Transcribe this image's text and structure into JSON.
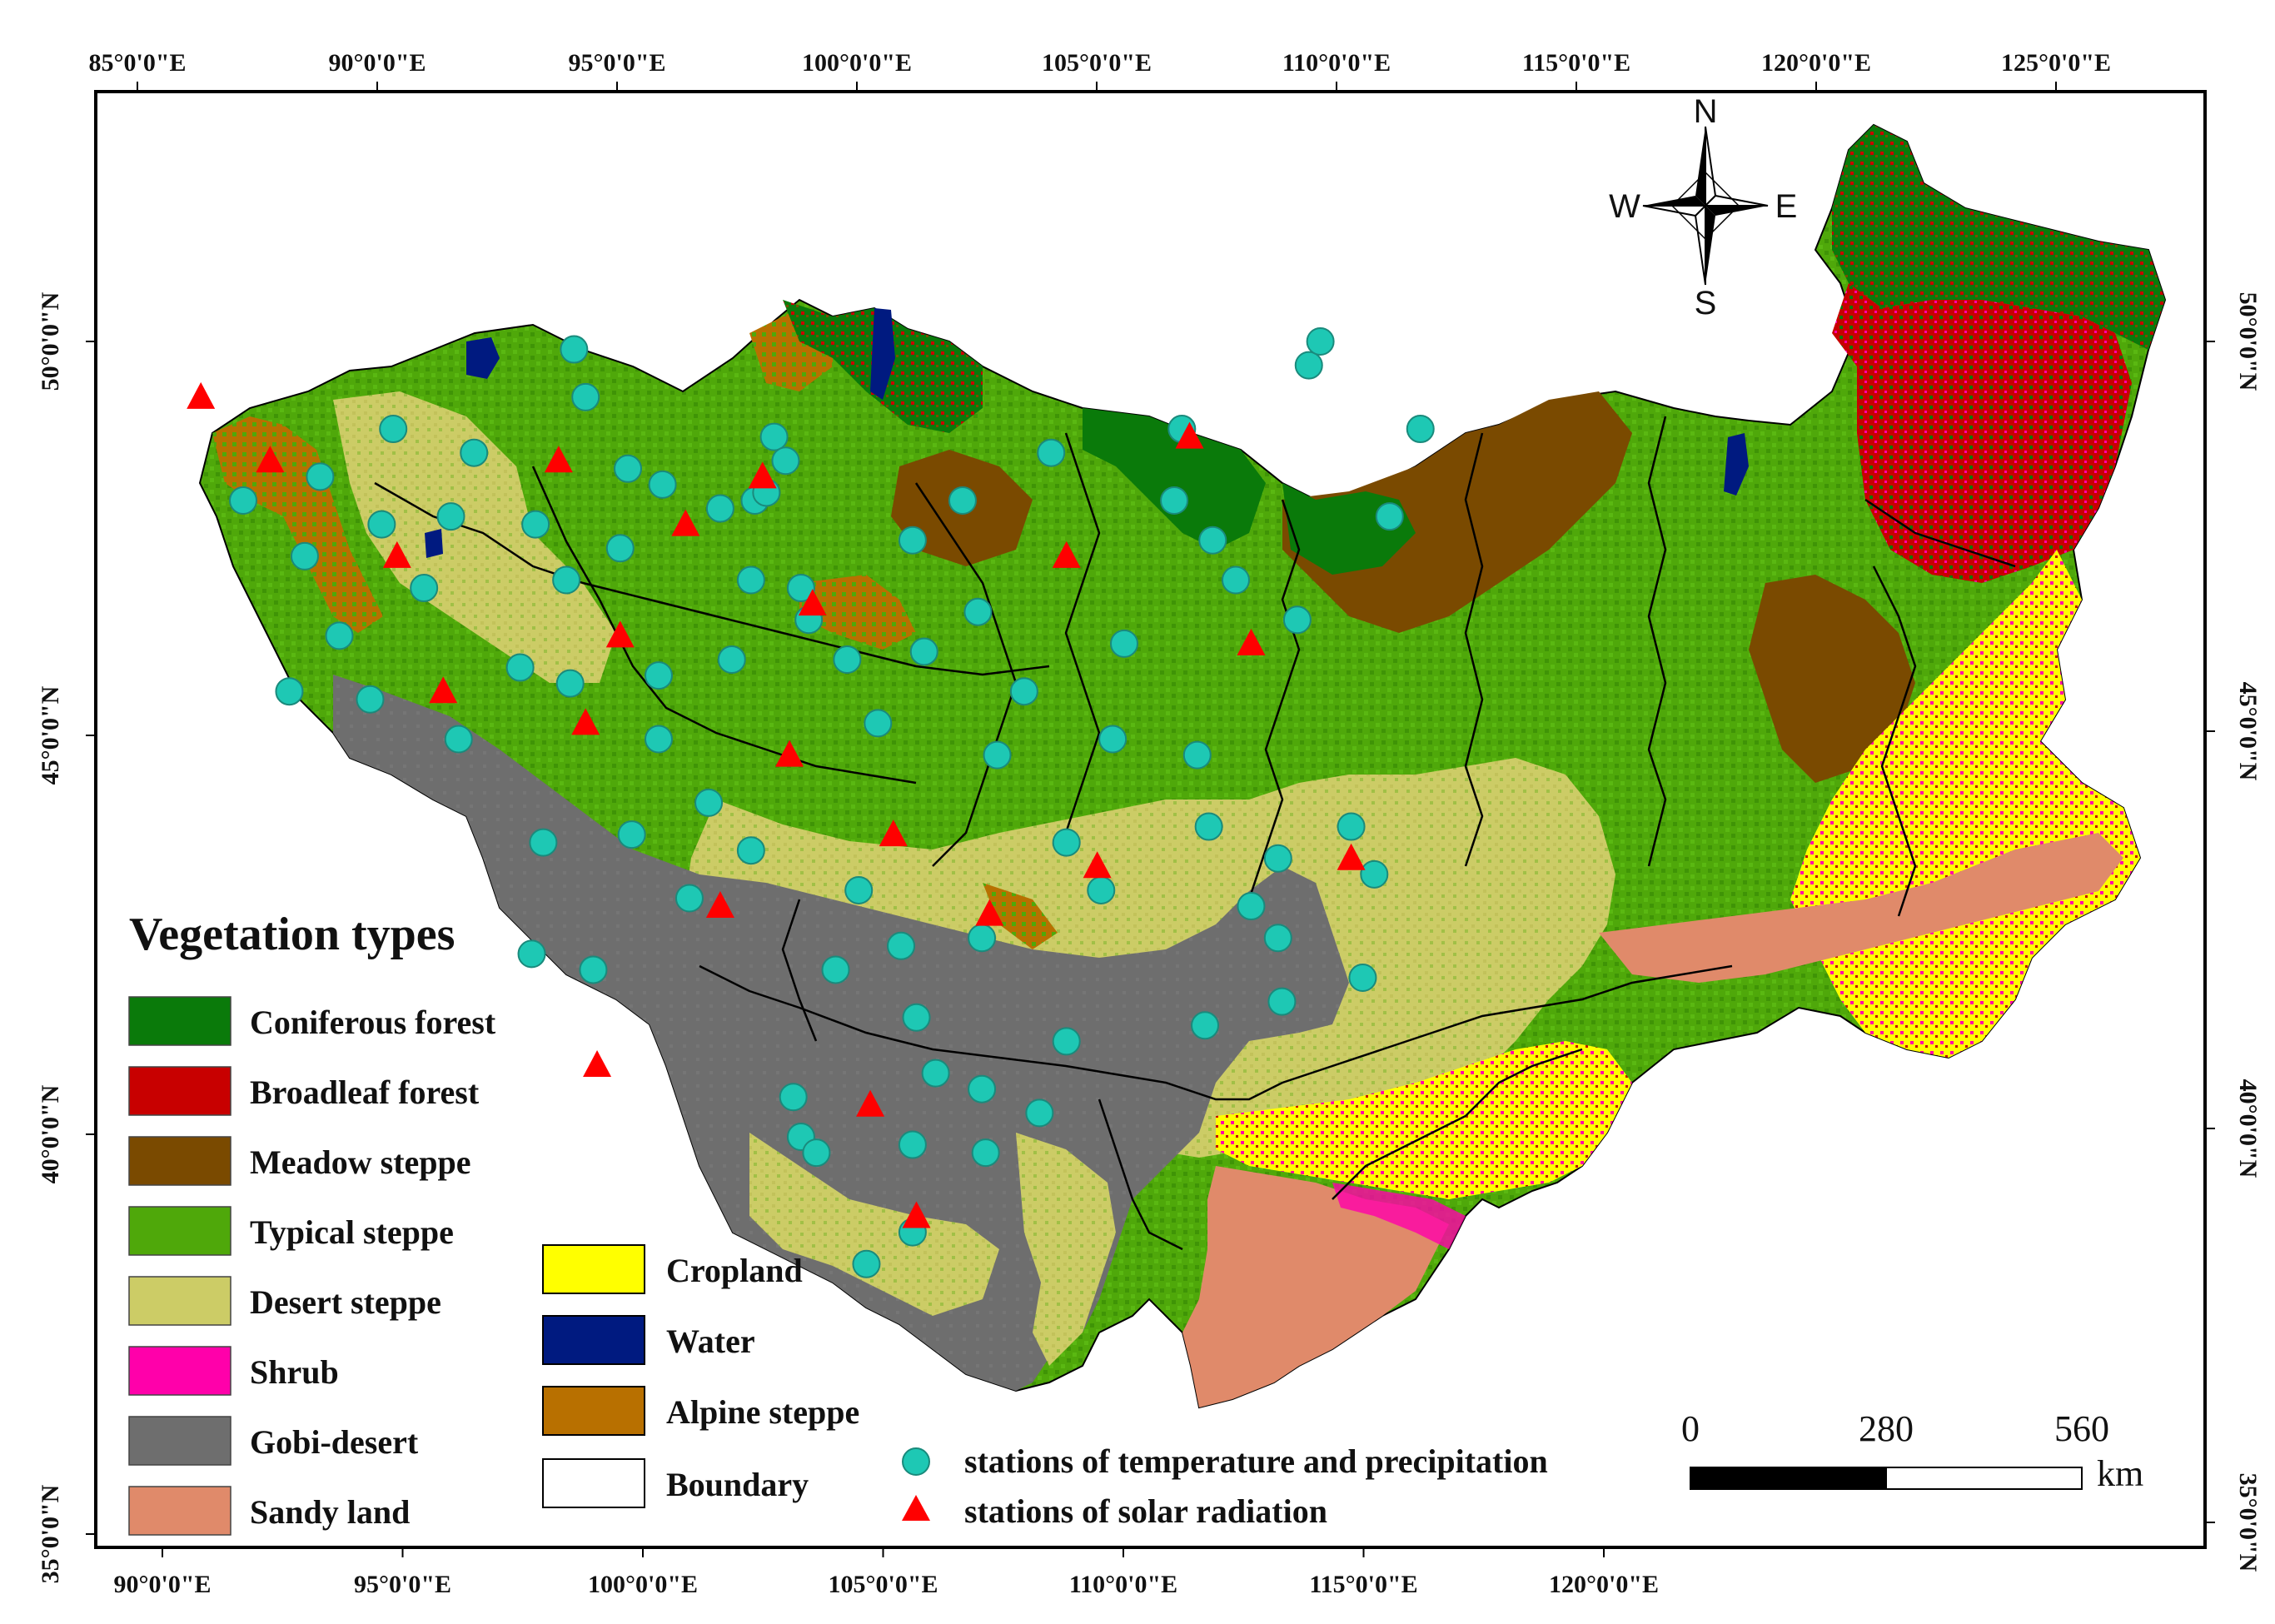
{
  "legend": {
    "title": "Vegetation types",
    "items": [
      {
        "key": "coniferous",
        "label": "Coniferous forest",
        "color": "#0a7a0a"
      },
      {
        "key": "broadleaf",
        "label": "Broadleaf forest",
        "color": "#c80000"
      },
      {
        "key": "meadow",
        "label": "Meadow steppe",
        "color": "#7a4a00"
      },
      {
        "key": "typical",
        "label": "Typical steppe",
        "color": "#4fa80a"
      },
      {
        "key": "desert_steppe",
        "label": "Desert steppe",
        "color": "#cccc66"
      },
      {
        "key": "shrub",
        "label": "Shrub",
        "color": "#ff00aa"
      },
      {
        "key": "gobi",
        "label": "Gobi-desert",
        "color": "#6e6e6e"
      },
      {
        "key": "sandy",
        "label": "Sandy land",
        "color": "#e08a6a"
      },
      {
        "key": "cropland",
        "label": "Cropland",
        "color": "#ffff00"
      },
      {
        "key": "water",
        "label": "Water",
        "color": "#001a80"
      },
      {
        "key": "alpine",
        "label": "Alpine steppe",
        "color": "#b87000"
      },
      {
        "key": "boundary",
        "label": "Boundary",
        "color": "#ffffff"
      }
    ],
    "stations_temp": {
      "label": "stations of temperature and precipitation",
      "color": "#1ec8b4"
    },
    "stations_solar": {
      "label": "stations of solar radiation",
      "color": "#ff0000"
    }
  },
  "axes": {
    "top_lon": [
      "85°0'0\"E",
      "90°0'0\"E",
      "95°0'0\"E",
      "100°0'0\"E",
      "105°0'0\"E",
      "110°0'0\"E",
      "115°0'0\"E",
      "120°0'0\"E",
      "125°0'0\"E"
    ],
    "bottom_lon": [
      "90°0'0\"E",
      "95°0'0\"E",
      "100°0'0\"E",
      "105°0'0\"E",
      "110°0'0\"E",
      "115°0'0\"E",
      "120°0'0\"E"
    ],
    "left_lat": [
      "50°0'0\"N",
      "45°0'0\"N",
      "40°0'0\"N",
      "35°0'0\"N"
    ],
    "right_lat": [
      "50°0'0\"N",
      "45°0'0\"N",
      "40°0'0\"N",
      "35°0'0\"N"
    ]
  },
  "compass": {
    "n": "N",
    "s": "S",
    "e": "E",
    "w": "W"
  },
  "scale_bar": {
    "labels": [
      "0",
      "280",
      "560"
    ],
    "unit": "km"
  },
  "stations": {
    "temp_precip": [
      [
        92.1,
        48.0
      ],
      [
        93.3,
        45.6
      ],
      [
        93.7,
        47.3
      ],
      [
        94.1,
        48.3
      ],
      [
        94.6,
        46.3
      ],
      [
        95.4,
        45.5
      ],
      [
        95.7,
        47.7
      ],
      [
        96.0,
        48.9
      ],
      [
        96.8,
        46.9
      ],
      [
        97.5,
        47.8
      ],
      [
        97.7,
        45.0
      ],
      [
        98.1,
        48.6
      ],
      [
        99.3,
        45.9
      ],
      [
        99.7,
        47.7
      ],
      [
        99.9,
        43.7
      ],
      [
        99.6,
        42.3
      ],
      [
        100.5,
        47.0
      ],
      [
        100.6,
        45.7
      ],
      [
        100.7,
        49.9
      ],
      [
        101.0,
        49.3
      ],
      [
        101.2,
        42.1
      ],
      [
        101.9,
        47.4
      ],
      [
        102.2,
        43.8
      ],
      [
        102.1,
        48.4
      ],
      [
        102.9,
        45.8
      ],
      [
        102.9,
        45.0
      ],
      [
        103.0,
        48.2
      ],
      [
        103.7,
        43.0
      ],
      [
        104.2,
        44.2
      ],
      [
        104.5,
        47.9
      ],
      [
        104.8,
        46.0
      ],
      [
        105.3,
        43.6
      ],
      [
        105.3,
        47.0
      ],
      [
        105.4,
        48.0
      ],
      [
        105.7,
        48.1
      ],
      [
        105.9,
        48.8
      ],
      [
        106.2,
        48.5
      ],
      [
        106.6,
        46.9
      ],
      [
        106.8,
        46.5
      ],
      [
        106.4,
        40.5
      ],
      [
        106.6,
        40.0
      ],
      [
        107.0,
        39.8
      ],
      [
        107.5,
        42.1
      ],
      [
        107.8,
        46.0
      ],
      [
        108.1,
        43.1
      ],
      [
        108.6,
        45.2
      ],
      [
        108.3,
        38.4
      ],
      [
        109.2,
        42.4
      ],
      [
        109.5,
        39.9
      ],
      [
        109.5,
        38.8
      ],
      [
        109.6,
        41.5
      ],
      [
        109.5,
        47.5
      ],
      [
        109.8,
        46.1
      ],
      [
        110.1,
        40.8
      ],
      [
        110.8,
        48.0
      ],
      [
        111.2,
        46.6
      ],
      [
        111.3,
        42.5
      ],
      [
        111.3,
        40.6
      ],
      [
        111.4,
        39.8
      ],
      [
        111.7,
        44.8
      ],
      [
        112.4,
        45.6
      ],
      [
        112.8,
        40.3
      ],
      [
        113.1,
        48.6
      ],
      [
        113.5,
        43.7
      ],
      [
        113.5,
        41.2
      ],
      [
        114.4,
        43.1
      ],
      [
        114.7,
        45.0
      ],
      [
        115.0,
        46.2
      ],
      [
        116.3,
        48.0
      ],
      [
        116.5,
        48.9
      ],
      [
        116.9,
        44.8
      ],
      [
        117.1,
        41.4
      ],
      [
        117.2,
        43.9
      ],
      [
        117.3,
        47.5
      ],
      [
        117.9,
        47.0
      ],
      [
        118.3,
        42.9
      ],
      [
        119.0,
        43.5
      ],
      [
        119.0,
        42.5
      ],
      [
        119.1,
        41.7
      ],
      [
        119.5,
        46.5
      ],
      [
        119.8,
        49.7
      ],
      [
        120.1,
        50.0
      ],
      [
        120.9,
        43.9
      ],
      [
        121.2,
        42.0
      ],
      [
        121.5,
        43.3
      ],
      [
        121.9,
        47.8
      ],
      [
        122.7,
        48.9
      ]
    ],
    "solar": [
      [
        92.8,
        48.5
      ],
      [
        91.0,
        49.3
      ],
      [
        96.1,
        47.3
      ],
      [
        97.3,
        45.6
      ],
      [
        100.3,
        48.5
      ],
      [
        101.0,
        45.2
      ],
      [
        101.3,
        40.9
      ],
      [
        101.9,
        46.3
      ],
      [
        103.6,
        47.7
      ],
      [
        104.5,
        42.9
      ],
      [
        105.6,
        48.3
      ],
      [
        106.3,
        44.8
      ],
      [
        106.9,
        46.7
      ],
      [
        108.4,
        40.4
      ],
      [
        109.0,
        43.8
      ],
      [
        109.6,
        39.0
      ],
      [
        111.5,
        42.8
      ],
      [
        113.5,
        47.3
      ],
      [
        114.3,
        43.4
      ],
      [
        116.7,
        48.8
      ],
      [
        118.3,
        46.2
      ],
      [
        120.9,
        43.5
      ]
    ]
  }
}
